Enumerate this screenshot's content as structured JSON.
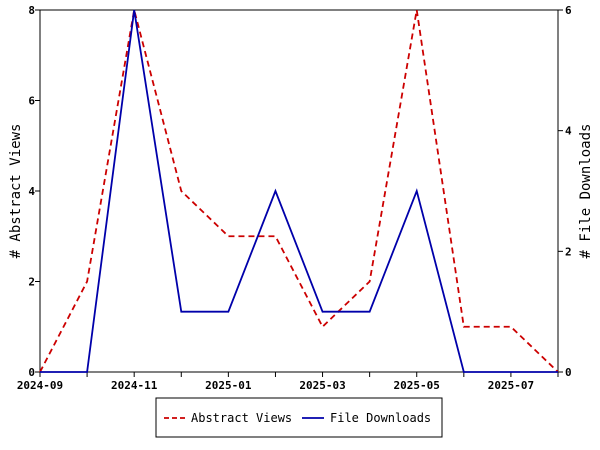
{
  "chart_data": {
    "type": "line",
    "x": [
      "2024-09",
      "2024-10",
      "2024-11",
      "2024-12",
      "2025-01",
      "2025-02",
      "2025-03",
      "2025-04",
      "2025-05",
      "2025-06",
      "2025-07",
      "2025-08"
    ],
    "x_tick_labels": [
      "2024-09",
      "2024-11",
      "2025-01",
      "2025-03",
      "2025-05",
      "2025-07"
    ],
    "series": [
      {
        "name": "Abstract Views",
        "axis": "left",
        "values": [
          0,
          2,
          8,
          4,
          3,
          3,
          1,
          2,
          8,
          1,
          1,
          0
        ],
        "color": "#cc0000",
        "style": "dashed"
      },
      {
        "name": "File Downloads",
        "axis": "right",
        "values": [
          0,
          0,
          6,
          1,
          1,
          3,
          1,
          1,
          3,
          0,
          0,
          0
        ],
        "color": "#0000aa",
        "style": "solid"
      }
    ],
    "ylabel_left": "# Abstract Views",
    "ylabel_right": "# File Downloads",
    "ylim_left": [
      0,
      8
    ],
    "ylim_right": [
      0,
      6
    ],
    "yticks_left": [
      0,
      2,
      4,
      6,
      8
    ],
    "yticks_right": [
      0,
      2,
      4,
      6
    ],
    "legend_position": "bottom",
    "grid": false
  }
}
